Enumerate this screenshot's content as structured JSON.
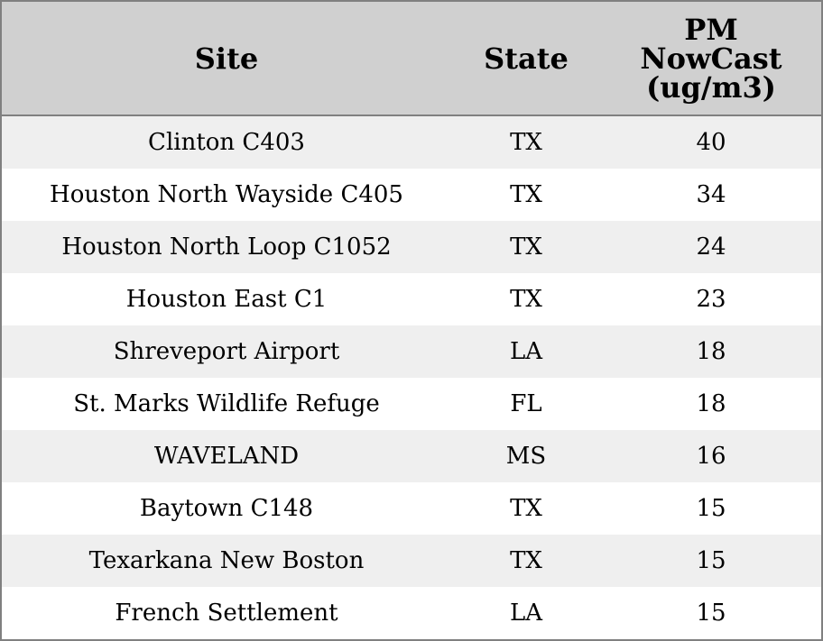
{
  "table": {
    "header": [
      "Site",
      "State",
      "PM NowCast (ug/m3)"
    ],
    "rows": [
      [
        "Clinton C403",
        "TX",
        40
      ],
      [
        "Houston North Wayside C405",
        "TX",
        34
      ],
      [
        "Houston North Loop C1052",
        "TX",
        24
      ],
      [
        "Houston East C1",
        "TX",
        23
      ],
      [
        "Shreveport Airport",
        "LA",
        18
      ],
      [
        "St. Marks Wildlife Refuge",
        "FL",
        18
      ],
      [
        "WAVELAND",
        "MS",
        16
      ],
      [
        "Baytown C148",
        "TX",
        15
      ],
      [
        "Texarkana New Boston",
        "TX",
        15
      ],
      [
        "French Settlement",
        "LA",
        15
      ]
    ]
  }
}
